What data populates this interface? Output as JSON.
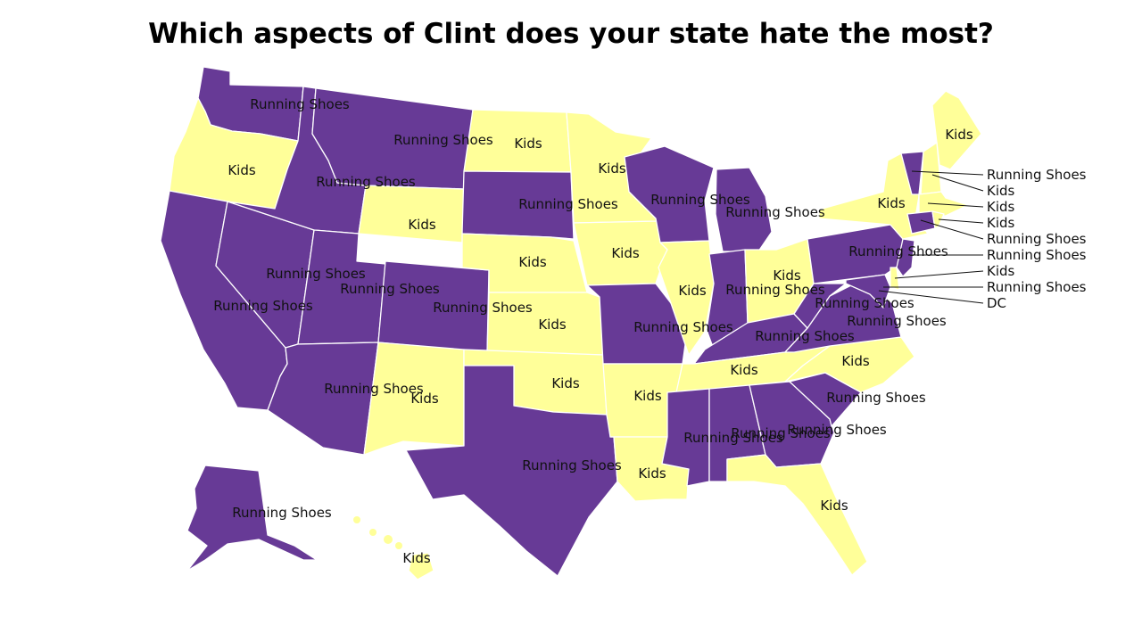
{
  "title": "Which aspects of Clint does your state hate the most?",
  "colors": {
    "Running Shoes": "#673a96",
    "Kids": "#ffff99"
  },
  "states": {
    "WA": "Running Shoes",
    "OR": "Kids",
    "CA": "Running Shoes",
    "NV": "Running Shoes",
    "ID": "Running Shoes",
    "MT": "Running Shoes",
    "WY": "Kids",
    "UT": "Running Shoes",
    "CO": "Running Shoes",
    "AZ": "Running Shoes",
    "NM": "Kids",
    "ND": "Kids",
    "SD": "Running Shoes",
    "NE": "Kids",
    "KS": "Kids",
    "OK": "Kids",
    "TX": "Running Shoes",
    "MN": "Kids",
    "IA": "Kids",
    "MO": "Running Shoes",
    "AR": "Kids",
    "LA": "Kids",
    "WI": "Running Shoes",
    "IL": "Kids",
    "MI": "Running Shoes",
    "IN": "Running Shoes",
    "OH": "Kids",
    "KY": "Running Shoes",
    "TN": "Kids",
    "MS": "Running Shoes",
    "AL": "Running Shoes",
    "GA": "Running Shoes",
    "FL": "Kids",
    "SC": "Running Shoes",
    "NC": "Kids",
    "VA": "Running Shoes",
    "WV": "Running Shoes",
    "PA": "Running Shoes",
    "NY": "Kids",
    "ME": "Kids",
    "VT": "Running Shoes",
    "NH": "Kids",
    "MA": "Kids",
    "RI": "Kids",
    "CT": "Running Shoes",
    "NJ": "Running Shoes",
    "DE": "Kids",
    "MD": "Running Shoes",
    "AK": "Running Shoes",
    "HI": "Kids"
  },
  "callouts": [
    "Running Shoes",
    "Kids",
    "Kids",
    "Kids",
    "Running Shoes",
    "Running Shoes",
    "Kids",
    "Running Shoes",
    "DC"
  ]
}
